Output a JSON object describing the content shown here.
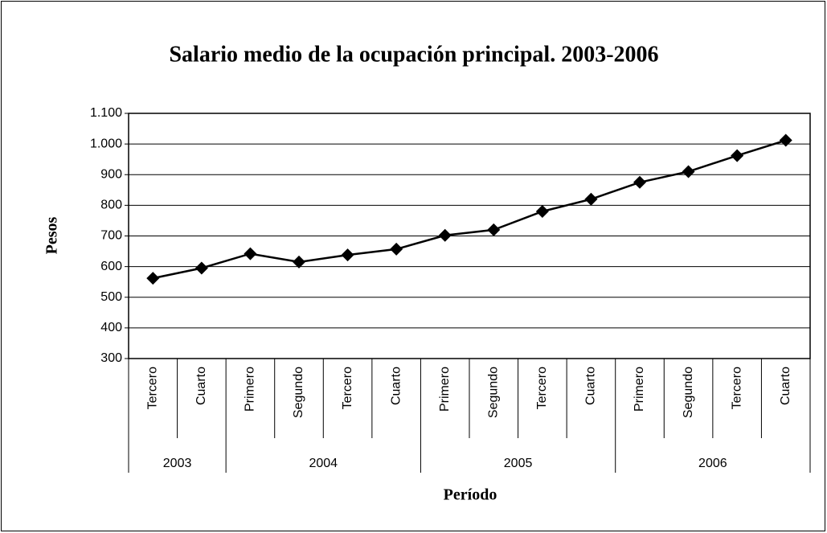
{
  "chart_data": {
    "type": "line",
    "title": "Salario medio de la ocupación principal. 2003-2006",
    "y_label": "Pesos",
    "x_label": "Período",
    "groups": [
      {
        "name": "2003",
        "categories": [
          "Tercero",
          "Cuarto"
        ]
      },
      {
        "name": "2004",
        "categories": [
          "Primero",
          "Segundo",
          "Tercero",
          "Cuarto"
        ]
      },
      {
        "name": "2005",
        "categories": [
          "Primero",
          "Segundo",
          "Tercero",
          "Cuarto"
        ]
      },
      {
        "name": "2006",
        "categories": [
          "Primero",
          "Segundo",
          "Tercero",
          "Cuarto"
        ]
      }
    ],
    "values": [
      562,
      595,
      642,
      615,
      638,
      657,
      702,
      720,
      780,
      820,
      875,
      910,
      962,
      1012
    ],
    "color": "#000000",
    "ylim": [
      300,
      1100
    ],
    "yticks": [
      300,
      400,
      500,
      600,
      700,
      800,
      900,
      {
        "value": 1000,
        "label": "1.000"
      },
      {
        "value": 1100,
        "label": "1.100"
      }
    ],
    "grid": true
  }
}
